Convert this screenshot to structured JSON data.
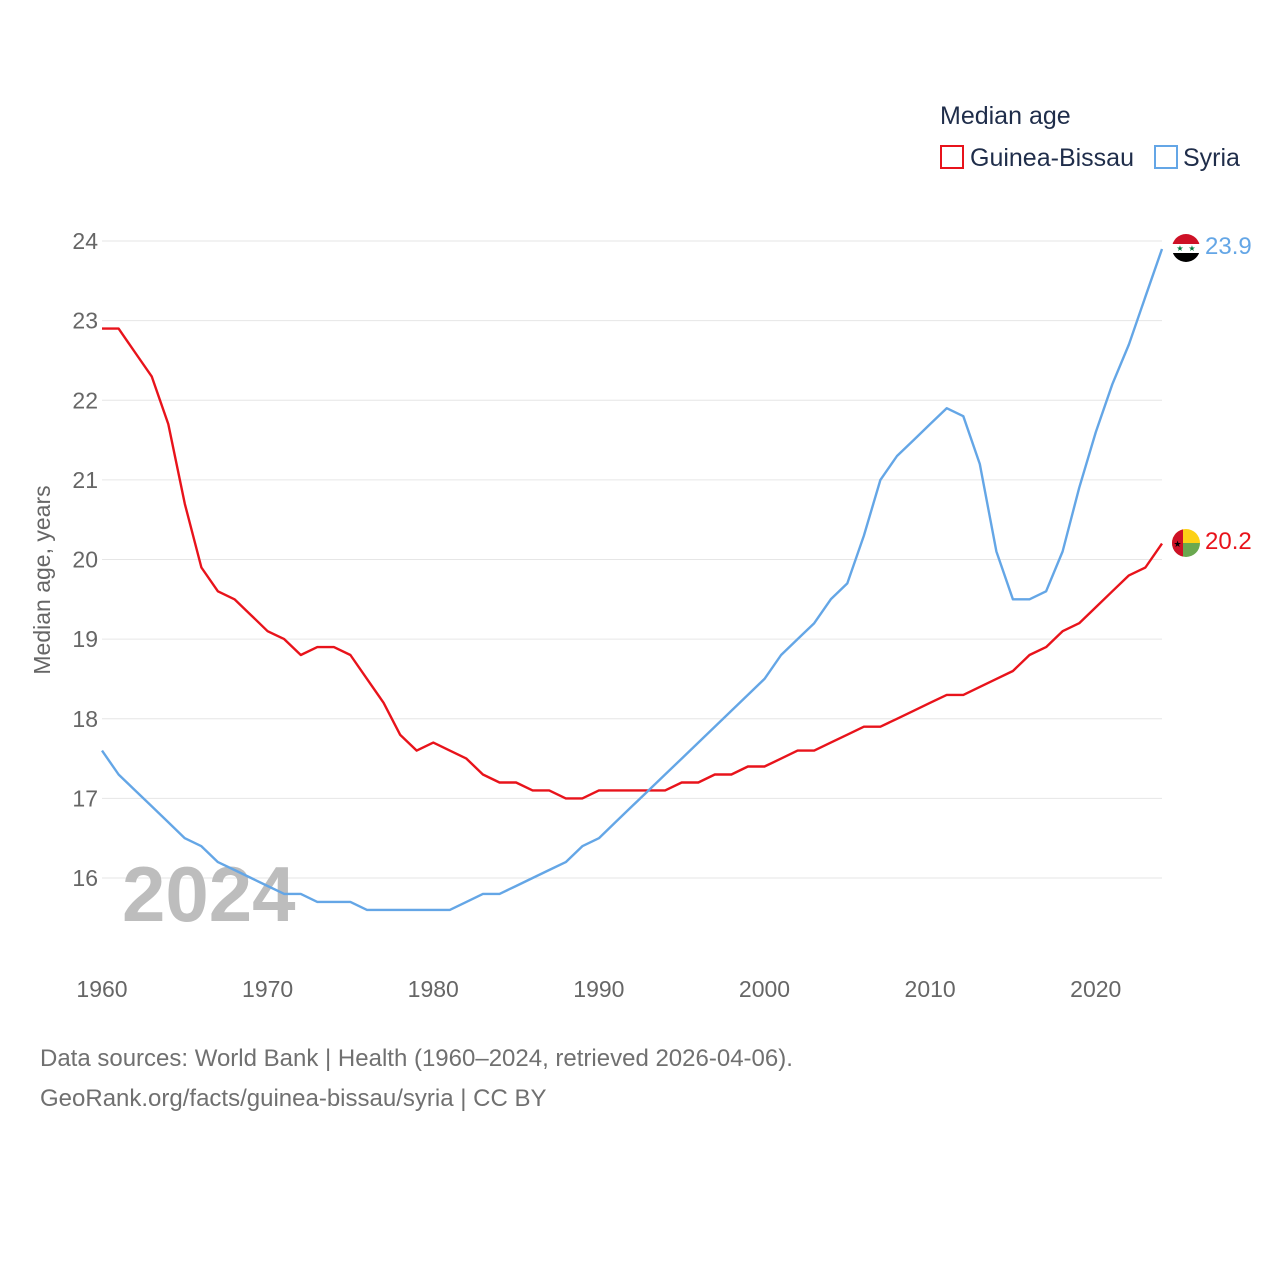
{
  "chart_data": {
    "type": "line",
    "year_label": "2024",
    "ylabel": "Median age, years",
    "ylim": [
      15,
      24.4
    ],
    "xlim": [
      1960,
      2024
    ],
    "x_ticks": [
      1960,
      1970,
      1980,
      1990,
      2000,
      2010,
      2020
    ],
    "y_ticks": [
      16,
      17,
      18,
      19,
      20,
      21,
      22,
      23,
      24
    ],
    "grid": true,
    "legend": {
      "title": "Median age",
      "position": "top-right",
      "entries": [
        {
          "name": "Guinea-Bissau",
          "color": "#e8131b"
        },
        {
          "name": "Syria",
          "color": "#64a6e6"
        }
      ]
    },
    "x": [
      1960,
      1961,
      1962,
      1963,
      1964,
      1965,
      1966,
      1967,
      1968,
      1969,
      1970,
      1971,
      1972,
      1973,
      1974,
      1975,
      1976,
      1977,
      1978,
      1979,
      1980,
      1981,
      1982,
      1983,
      1984,
      1985,
      1986,
      1987,
      1988,
      1989,
      1990,
      1991,
      1992,
      1993,
      1994,
      1995,
      1996,
      1997,
      1998,
      1999,
      2000,
      2001,
      2002,
      2003,
      2004,
      2005,
      2006,
      2007,
      2008,
      2009,
      2010,
      2011,
      2012,
      2013,
      2014,
      2015,
      2016,
      2017,
      2018,
      2019,
      2020,
      2021,
      2022,
      2023,
      2024
    ],
    "series": [
      {
        "name": "Guinea-Bissau",
        "color": "#e8131b",
        "end_label": "20.2",
        "values": [
          22.9,
          22.9,
          22.6,
          22.3,
          21.7,
          20.7,
          19.9,
          19.6,
          19.5,
          19.3,
          19.1,
          19.0,
          18.8,
          18.9,
          18.9,
          18.8,
          18.5,
          18.2,
          17.8,
          17.6,
          17.7,
          17.6,
          17.5,
          17.3,
          17.2,
          17.2,
          17.1,
          17.1,
          17.0,
          17.0,
          17.1,
          17.1,
          17.1,
          17.1,
          17.1,
          17.2,
          17.2,
          17.3,
          17.3,
          17.4,
          17.4,
          17.5,
          17.6,
          17.6,
          17.7,
          17.8,
          17.9,
          17.9,
          18.0,
          18.1,
          18.2,
          18.3,
          18.3,
          18.4,
          18.5,
          18.6,
          18.8,
          18.9,
          19.1,
          19.2,
          19.4,
          19.6,
          19.8,
          19.9,
          20.2
        ]
      },
      {
        "name": "Syria",
        "color": "#64a6e6",
        "end_label": "23.9",
        "values": [
          17.6,
          17.3,
          17.1,
          16.9,
          16.7,
          16.5,
          16.4,
          16.2,
          16.1,
          16.0,
          15.9,
          15.8,
          15.8,
          15.7,
          15.7,
          15.7,
          15.6,
          15.6,
          15.6,
          15.6,
          15.6,
          15.6,
          15.7,
          15.8,
          15.8,
          15.9,
          16.0,
          16.1,
          16.2,
          16.4,
          16.5,
          16.7,
          16.9,
          17.1,
          17.3,
          17.5,
          17.7,
          17.9,
          18.1,
          18.3,
          18.5,
          18.8,
          19.0,
          19.2,
          19.5,
          19.7,
          20.3,
          21.0,
          21.3,
          21.5,
          21.7,
          21.9,
          21.8,
          21.2,
          20.1,
          19.5,
          19.5,
          19.6,
          20.1,
          20.9,
          21.6,
          22.2,
          22.7,
          23.3,
          23.9
        ]
      }
    ],
    "source_line1": "Data sources: World Bank | Health (1960–2024, retrieved 2026-04-06).",
    "source_line2": "GeoRank.org/facts/guinea-bissau/syria | CC BY"
  },
  "flags": [
    {
      "name": "syria-flag-icon",
      "colors": [
        "#ce1126",
        "#ffffff",
        "#000000",
        "#007a3d"
      ]
    },
    {
      "name": "guinea-bissau-flag-icon",
      "colors": [
        "#ce1126",
        "#fcd116",
        "#009e49",
        "#000000"
      ]
    }
  ]
}
